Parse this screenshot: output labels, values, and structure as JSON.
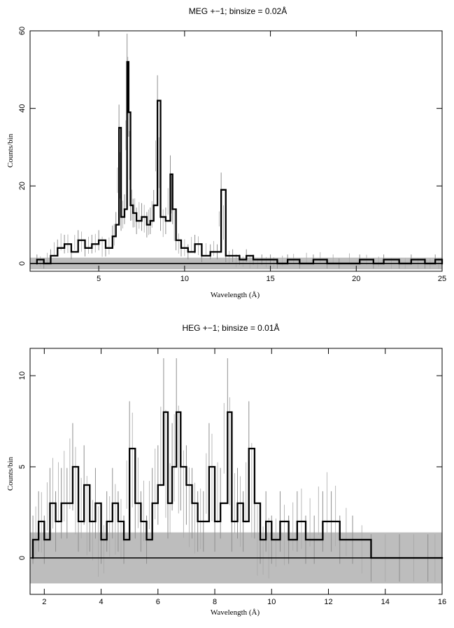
{
  "chart_data": [
    {
      "type": "line",
      "title": "MEG +−1; binsize = 0.02Å",
      "xlabel": "Wavelength (Å)",
      "ylabel": "Counts/bin",
      "xlim": [
        1.0,
        25.0
      ],
      "ylim": [
        -2.0,
        60.0
      ],
      "xticks": [
        5,
        10,
        15,
        20,
        25
      ],
      "yticks": [
        0,
        20,
        40,
        60
      ],
      "error_band_half_width": 1.5,
      "series": [
        {
          "x": [
            1.4,
            1.8,
            2.2,
            2.6,
            3.0,
            3.4,
            3.8,
            4.2,
            4.6,
            5.0,
            5.4,
            5.8,
            6.0,
            6.18,
            6.3,
            6.5,
            6.65,
            6.74,
            6.85,
            7.0,
            7.2,
            7.5,
            7.8,
            8.0,
            8.2,
            8.42,
            8.6,
            8.9,
            9.17,
            9.3,
            9.5,
            9.8,
            10.2,
            10.6,
            11.0,
            11.5,
            11.9,
            12.13,
            12.4,
            12.8,
            13.2,
            13.6,
            14.0,
            14.5,
            15.0,
            15.4,
            16.0,
            16.7,
            17.5,
            18.3,
            19.0,
            20.2,
            21.0,
            21.6,
            22.5,
            23.2,
            24.0,
            24.6,
            25.0
          ],
          "y": [
            1,
            0,
            2,
            4,
            5,
            3,
            6,
            4,
            5,
            6,
            4,
            7,
            10,
            35,
            12,
            14,
            52,
            39,
            15,
            13,
            11,
            12,
            10,
            11,
            15,
            42,
            12,
            11,
            23,
            14,
            6,
            4,
            3,
            5,
            2,
            3,
            3,
            19,
            2,
            2,
            1,
            2,
            1,
            1,
            1,
            0,
            1,
            0,
            1,
            0,
            0,
            1,
            0,
            1,
            0,
            1,
            0,
            1,
            0
          ]
        }
      ]
    },
    {
      "type": "line",
      "title": "HEG +−1; binsize = 0.01Å",
      "xlabel": "Wavelength (Å)",
      "ylabel": "Counts/bin",
      "xlim": [
        1.5,
        16.0
      ],
      "ylim": [
        -2.0,
        11.5
      ],
      "xticks": [
        2,
        4,
        6,
        8,
        10,
        12,
        14,
        16
      ],
      "yticks": [
        0,
        5,
        10
      ],
      "error_band_half_width": 1.4,
      "series": [
        {
          "x": [
            1.6,
            1.8,
            2.0,
            2.2,
            2.4,
            2.6,
            2.8,
            3.0,
            3.2,
            3.4,
            3.6,
            3.8,
            4.0,
            4.2,
            4.4,
            4.6,
            4.8,
            5.0,
            5.2,
            5.4,
            5.6,
            5.8,
            6.0,
            6.2,
            6.35,
            6.5,
            6.65,
            6.8,
            7.0,
            7.2,
            7.4,
            7.6,
            7.8,
            8.0,
            8.2,
            8.45,
            8.6,
            8.8,
            9.0,
            9.2,
            9.4,
            9.6,
            9.8,
            10.0,
            10.3,
            10.6,
            10.9,
            11.2,
            11.5,
            11.8,
            12.1,
            12.4,
            12.85,
            13.5,
            14.5,
            15.5,
            16.0
          ],
          "y": [
            1,
            2,
            1,
            3,
            2,
            3,
            3,
            5,
            2,
            4,
            2,
            3,
            1,
            2,
            3,
            2,
            1,
            6,
            3,
            2,
            1,
            3,
            4,
            8,
            3,
            5,
            8,
            5,
            4,
            3,
            2,
            2,
            5,
            2,
            3,
            8,
            2,
            3,
            2,
            6,
            3,
            1,
            2,
            1,
            2,
            1,
            2,
            1,
            1,
            2,
            2,
            1,
            1,
            0,
            0,
            0,
            0
          ]
        }
      ]
    }
  ]
}
